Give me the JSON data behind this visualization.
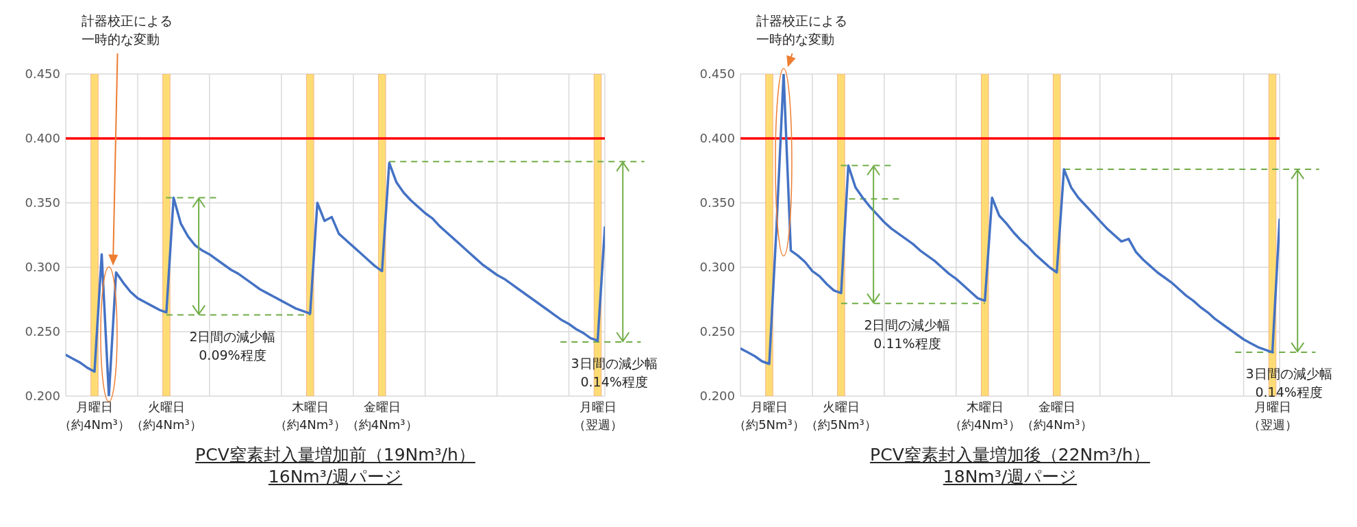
{
  "chart_data": [
    {
      "type": "line",
      "title": "PCV窒素封入量増加前（19Nm³/h）",
      "subtitle": "16Nm³/週パージ",
      "categories": [
        null,
        null,
        null,
        null,
        "月曜日（約4Nm³）",
        null,
        null,
        null,
        null,
        null,
        null,
        null,
        null,
        null,
        "火曜日（約4Nm³）",
        null,
        null,
        null,
        null,
        null,
        null,
        null,
        null,
        null,
        null,
        null,
        null,
        null,
        null,
        null,
        null,
        null,
        null,
        null,
        "木曜日（約4Nm³）",
        null,
        null,
        null,
        null,
        null,
        null,
        null,
        null,
        null,
        "金曜日（約4Nm³）",
        null,
        null,
        null,
        null,
        null,
        null,
        null,
        null,
        null,
        null,
        null,
        null,
        null,
        null,
        null,
        null,
        null,
        null,
        null,
        null,
        null,
        null,
        null,
        null,
        null,
        null,
        null,
        null,
        null,
        "月曜日（翌週）",
        null
      ],
      "ylim": [
        0.2,
        0.45
      ],
      "yticks": [
        {
          "value": 0.2,
          "label": "0.200"
        },
        {
          "value": 0.25,
          "label": "0.250"
        },
        {
          "value": 0.3,
          "label": "0.300"
        },
        {
          "value": 0.35,
          "label": "0.350"
        },
        {
          "value": 0.4,
          "label": "0.400"
        },
        {
          "value": 0.45,
          "label": "0.450"
        }
      ],
      "grid": true,
      "marker": "none",
      "line_style": "solid",
      "series": [
        {
          "color": "#4472c4",
          "values": [
            0.232,
            0.229,
            0.226,
            0.222,
            0.219,
            0.31,
            0.2,
            0.296,
            0.288,
            0.281,
            0.276,
            0.273,
            0.27,
            0.267,
            0.265,
            0.354,
            0.334,
            0.324,
            0.317,
            0.313,
            0.31,
            0.306,
            0.302,
            0.298,
            0.295,
            0.291,
            0.287,
            0.283,
            0.28,
            0.277,
            0.274,
            0.271,
            0.268,
            0.266,
            0.264,
            0.35,
            0.336,
            0.339,
            0.326,
            0.321,
            0.316,
            0.311,
            0.306,
            0.301,
            0.297,
            0.381,
            0.366,
            0.358,
            0.352,
            0.347,
            0.342,
            0.338,
            0.332,
            0.327,
            0.322,
            0.317,
            0.312,
            0.307,
            0.302,
            0.298,
            0.294,
            0.291,
            0.287,
            0.283,
            0.279,
            0.275,
            0.271,
            0.267,
            0.263,
            0.259,
            0.256,
            0.252,
            0.249,
            0.245,
            0.243,
            0.331
          ]
        }
      ],
      "bands": [
        {
          "axis": "x",
          "from": "月曜日（約4Nm³）",
          "to": "月曜日（約4Nm³）",
          "color": "#ffd966"
        },
        {
          "axis": "x",
          "from": "火曜日（約4Nm³）",
          "to": "火曜日（約4Nm³）",
          "color": "#ffd966"
        },
        {
          "axis": "x",
          "from": "木曜日（約4Nm³）",
          "to": "木曜日（約4Nm³）",
          "color": "#ffd966"
        },
        {
          "axis": "x",
          "from": "金曜日（約4Nm³）",
          "to": "金曜日（約4Nm³）",
          "color": "#ffd966"
        },
        {
          "axis": "x",
          "from": "月曜日（翌週）",
          "to": "月曜日（翌週）",
          "color": "#ffd966"
        }
      ],
      "ref_lines": [
        {
          "axis": "y",
          "value": 0.4,
          "color": "#ff0000",
          "line_style": "solid"
        },
        {
          "axis": "y",
          "value": 0.354,
          "color": "#70ad47",
          "line_style": "dashed"
        },
        {
          "axis": "y",
          "value": 0.263,
          "color": "#70ad47",
          "line_style": "dashed"
        },
        {
          "axis": "y",
          "value": 0.382,
          "color": "#70ad47",
          "line_style": "dashed"
        },
        {
          "axis": "y",
          "value": 0.242,
          "color": "#70ad47",
          "line_style": "dashed"
        }
      ],
      "annotations": [
        "計器校正による一時的な変動",
        {
          "text": "2日間の減少幅0.09%程度",
          "y": 0.263
        },
        "3日間の減少幅0.14%程度"
      ]
    },
    {
      "type": "line",
      "title": "PCV窒素封入量増加後（22Nm³/h）",
      "subtitle": "18Nm³/週パージ",
      "categories": [
        null,
        null,
        null,
        null,
        "月曜日（約5Nm³）",
        null,
        null,
        null,
        null,
        null,
        null,
        null,
        null,
        null,
        "火曜日（約5Nm³）",
        null,
        null,
        null,
        null,
        null,
        null,
        null,
        null,
        null,
        null,
        null,
        null,
        null,
        null,
        null,
        null,
        null,
        null,
        null,
        "木曜日（約4Nm³）",
        null,
        null,
        null,
        null,
        null,
        null,
        null,
        null,
        null,
        "金曜日（約4Nm³）",
        null,
        null,
        null,
        null,
        null,
        null,
        null,
        null,
        null,
        null,
        null,
        null,
        null,
        null,
        null,
        null,
        null,
        null,
        null,
        null,
        null,
        null,
        null,
        null,
        null,
        null,
        null,
        null,
        null,
        "月曜日（翌週）",
        null
      ],
      "ylim": [
        0.2,
        0.45
      ],
      "yticks": [
        {
          "value": 0.2,
          "label": "0.200"
        },
        {
          "value": 0.25,
          "label": "0.250"
        },
        {
          "value": 0.3,
          "label": "0.300"
        },
        {
          "value": 0.35,
          "label": "0.350"
        },
        {
          "value": 0.4,
          "label": "0.400"
        },
        {
          "value": 0.45,
          "label": "0.450"
        }
      ],
      "grid": true,
      "marker": "none",
      "line_style": "solid",
      "series": [
        {
          "color": "#4472c4",
          "values": [
            0.237,
            0.234,
            0.231,
            0.227,
            0.225,
            0.33,
            0.45,
            0.313,
            0.309,
            0.304,
            0.297,
            0.293,
            0.287,
            0.282,
            0.28,
            0.379,
            0.362,
            0.354,
            0.347,
            0.341,
            0.335,
            0.33,
            0.326,
            0.322,
            0.318,
            0.313,
            0.309,
            0.305,
            0.3,
            0.295,
            0.291,
            0.286,
            0.281,
            0.276,
            0.274,
            0.354,
            0.34,
            0.334,
            0.327,
            0.321,
            0.316,
            0.31,
            0.305,
            0.3,
            0.296,
            0.376,
            0.362,
            0.354,
            0.348,
            0.342,
            0.336,
            0.33,
            0.325,
            0.32,
            0.322,
            0.312,
            0.306,
            0.301,
            0.296,
            0.292,
            0.288,
            0.283,
            0.278,
            0.274,
            0.269,
            0.265,
            0.26,
            0.256,
            0.252,
            0.248,
            0.244,
            0.241,
            0.238,
            0.236,
            0.234,
            0.337
          ]
        }
      ],
      "bands": [
        {
          "axis": "x",
          "from": "月曜日（約5Nm³）",
          "to": "月曜日（約5Nm³）",
          "color": "#ffd966"
        },
        {
          "axis": "x",
          "from": "火曜日（約5Nm³）",
          "to": "火曜日（約5Nm³）",
          "color": "#ffd966"
        },
        {
          "axis": "x",
          "from": "木曜日（約4Nm³）",
          "to": "木曜日（約4Nm³）",
          "color": "#ffd966"
        },
        {
          "axis": "x",
          "from": "金曜日（約4Nm³）",
          "to": "金曜日（約4Nm³）",
          "color": "#ffd966"
        },
        {
          "axis": "x",
          "from": "月曜日（翌週）",
          "to": "月曜日（翌週）",
          "color": "#ffd966"
        }
      ],
      "ref_lines": [
        {
          "axis": "y",
          "value": 0.4,
          "color": "#ff0000",
          "line_style": "solid"
        },
        {
          "axis": "y",
          "value": 0.379,
          "color": "#70ad47",
          "line_style": "dashed"
        },
        {
          "axis": "y",
          "value": 0.272,
          "color": "#70ad47",
          "line_style": "dashed"
        },
        {
          "axis": "y",
          "value": 0.376,
          "color": "#70ad47",
          "line_style": "dashed"
        },
        {
          "axis": "y",
          "value": 0.234,
          "color": "#70ad47",
          "line_style": "dashed"
        },
        {
          "axis": "y",
          "value": 0.353,
          "color": "#70ad47",
          "line_style": "dashed"
        }
      ],
      "annotations": [
        "計器校正による一時的な変動",
        {
          "text": "2日間の減少幅0.11%程度",
          "y": 0.272
        },
        "3日間の減少幅0.14%程度"
      ]
    }
  ]
}
